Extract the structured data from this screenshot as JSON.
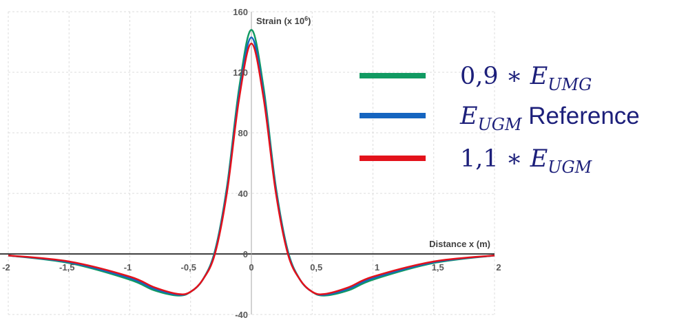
{
  "chart_data": {
    "type": "line",
    "xlabel": "Distance x (m)",
    "ylabel_base": "Strain (x 10",
    "ylabel_exp": "6",
    "ylabel_close": ")",
    "xlim": [
      -2,
      2
    ],
    "ylim": [
      -40,
      160
    ],
    "x_ticks": [
      "-2",
      "-1,5",
      "-1",
      "-0,5",
      "0",
      "0,5",
      "1",
      "1,5",
      "2"
    ],
    "x_tick_values": [
      -2,
      -1.5,
      -1,
      -0.5,
      0,
      0.5,
      1,
      1.5,
      2
    ],
    "y_ticks": [
      "-40",
      "0",
      "40",
      "80",
      "120",
      "160"
    ],
    "y_tick_values": [
      -40,
      0,
      40,
      80,
      120,
      160
    ],
    "grid": true,
    "legend_position": "right",
    "series": [
      {
        "key": "green",
        "color": "#119a62",
        "label_parts": [
          {
            "t": "0,9 ∗ ",
            "s": "n"
          },
          {
            "t": "E",
            "s": "i"
          },
          {
            "t": "UMG",
            "s": "sub"
          }
        ],
        "peak": 148,
        "trough": -27.5,
        "x": [
          -2,
          -1.5,
          -1,
          -0.8,
          -0.6,
          -0.5,
          -0.4,
          -0.3,
          -0.2,
          -0.1,
          0,
          0.1,
          0.2,
          0.3,
          0.4,
          0.5,
          0.6,
          0.8,
          1,
          1.5,
          2
        ],
        "y": [
          -1,
          -6,
          -17,
          -24,
          -27.5,
          -25,
          -17,
          2,
          45,
          110,
          148,
          110,
          45,
          2,
          -17,
          -25,
          -27.5,
          -24,
          -17,
          -6,
          -1
        ]
      },
      {
        "key": "blue",
        "color": "#1565c0",
        "label_parts": [
          {
            "t": "E",
            "s": "i"
          },
          {
            "t": "UGM",
            "s": "sub"
          },
          {
            "t": " Reference",
            "s": "sans"
          }
        ],
        "peak": 143,
        "trough": -27,
        "x": [
          -2,
          -1.5,
          -1,
          -0.8,
          -0.6,
          -0.5,
          -0.4,
          -0.3,
          -0.2,
          -0.1,
          0,
          0.1,
          0.2,
          0.3,
          0.4,
          0.5,
          0.6,
          0.8,
          1,
          1.5,
          2
        ],
        "y": [
          -1,
          -5.5,
          -16,
          -23,
          -27,
          -25,
          -17,
          1,
          43,
          106,
          143,
          106,
          43,
          1,
          -17,
          -25,
          -27,
          -23,
          -16,
          -5.5,
          -1
        ]
      },
      {
        "key": "red",
        "color": "#e3121b",
        "label_parts": [
          {
            "t": "1,1 ∗ ",
            "s": "n"
          },
          {
            "t": "E",
            "s": "i"
          },
          {
            "t": "UGM",
            "s": "sub"
          }
        ],
        "peak": 139,
        "trough": -26.5,
        "x": [
          -2,
          -1.5,
          -1,
          -0.8,
          -0.6,
          -0.5,
          -0.4,
          -0.3,
          -0.2,
          -0.1,
          0,
          0.1,
          0.2,
          0.3,
          0.4,
          0.5,
          0.6,
          0.8,
          1,
          1.5,
          2
        ],
        "y": [
          -1,
          -5,
          -15,
          -22,
          -26.5,
          -25,
          -17,
          0,
          41,
          103,
          139,
          103,
          41,
          0,
          -17,
          -25,
          -26.5,
          -22,
          -15,
          -5,
          -1
        ]
      }
    ]
  }
}
